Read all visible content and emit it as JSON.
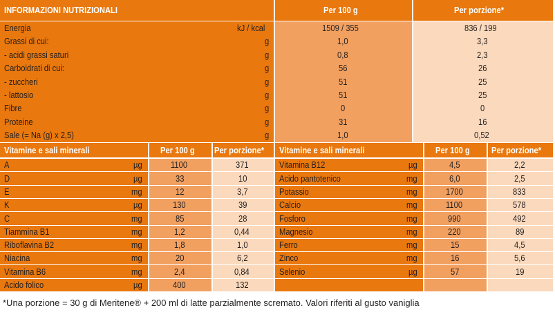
{
  "top": {
    "headers": [
      "INFORMAZIONI NUTRIZIONALI",
      "Per 100 g",
      "Per porzione*"
    ],
    "rows": [
      {
        "name": "Energia",
        "unit": "kJ / kcal",
        "per100": "1509 / 355",
        "portion": "836 / 199"
      },
      {
        "name": "Grassi di cui:",
        "unit": "g",
        "per100": "1,0",
        "portion": "3,3"
      },
      {
        "name": " - acidi grassi saturi",
        "unit": "g",
        "per100": "0,8",
        "portion": "2,3"
      },
      {
        "name": "Carboidrati di cui:",
        "unit": "g",
        "per100": "56",
        "portion": "26"
      },
      {
        "name": " - zuccheri",
        "unit": "g",
        "per100": "51",
        "portion": "25"
      },
      {
        "name": " - lattosio",
        "unit": "g",
        "per100": "51",
        "portion": "25"
      },
      {
        "name": "Fibre",
        "unit": "g",
        "per100": "0",
        "portion": "0"
      },
      {
        "name": "Proteine",
        "unit": "g",
        "per100": "31",
        "portion": "16"
      },
      {
        "name": "Sale (= Na (g) x 2,5)",
        "unit": "g",
        "per100": "1,0",
        "portion": "0,52"
      }
    ]
  },
  "vitamins_left": {
    "headers": [
      "Vitamine e sali minerali",
      "Per 100 g",
      "Per porzione*"
    ],
    "rows": [
      {
        "name": "A",
        "unit": "µg",
        "per100": "1100",
        "portion": "371"
      },
      {
        "name": "D",
        "unit": "µg",
        "per100": "33",
        "portion": "10"
      },
      {
        "name": "E",
        "unit": "mg",
        "per100": "12",
        "portion": "3,7"
      },
      {
        "name": "K",
        "unit": "µg",
        "per100": "130",
        "portion": "39"
      },
      {
        "name": "C",
        "unit": "mg",
        "per100": "85",
        "portion": "28"
      },
      {
        "name": "Tiammina B1",
        "unit": "mg",
        "per100": "1,2",
        "portion": "0,44"
      },
      {
        "name": "Riboflavina B2",
        "unit": "mg",
        "per100": "1,8",
        "portion": "1,0"
      },
      {
        "name": "Niacina",
        "unit": "mg",
        "per100": "20",
        "portion": "6,2"
      },
      {
        "name": "Vitamina B6",
        "unit": "mg",
        "per100": "2,4",
        "portion": "0,84"
      },
      {
        "name": "Acido folico",
        "unit": "µg",
        "per100": "400",
        "portion": "132"
      }
    ]
  },
  "vitamins_right": {
    "headers": [
      "Vitamine e sali minerali",
      "Per 100 g",
      "Per porzione*"
    ],
    "rows": [
      {
        "name": "Vitamina B12",
        "unit": "µg",
        "per100": "4,5",
        "portion": "2,2"
      },
      {
        "name": "Acido pantotenico",
        "unit": "mg",
        "per100": "6,0",
        "portion": "2,5"
      },
      {
        "name": "Potassio",
        "unit": "mg",
        "per100": "1700",
        "portion": "833"
      },
      {
        "name": "Calcio",
        "unit": "mg",
        "per100": "1100",
        "portion": "578"
      },
      {
        "name": "Fosforo",
        "unit": "mg",
        "per100": "990",
        "portion": "492"
      },
      {
        "name": "Magnesio",
        "unit": "mg",
        "per100": "220",
        "portion": "89"
      },
      {
        "name": "Ferro",
        "unit": "mg",
        "per100": "15",
        "portion": "4,5"
      },
      {
        "name": "Zinco",
        "unit": "mg",
        "per100": "16",
        "portion": "5,6"
      },
      {
        "name": "Selenio",
        "unit": "µg",
        "per100": "57",
        "portion": "19"
      }
    ]
  },
  "footnote": "*Una porzione = 30 g di  Meritene® + 200 ml di latte parzialmente scremato. Valori riferiti al gusto vaniglia",
  "colors": {
    "dark": "#e9780e",
    "mid": "#f2a060",
    "light": "#fbd9bc"
  }
}
